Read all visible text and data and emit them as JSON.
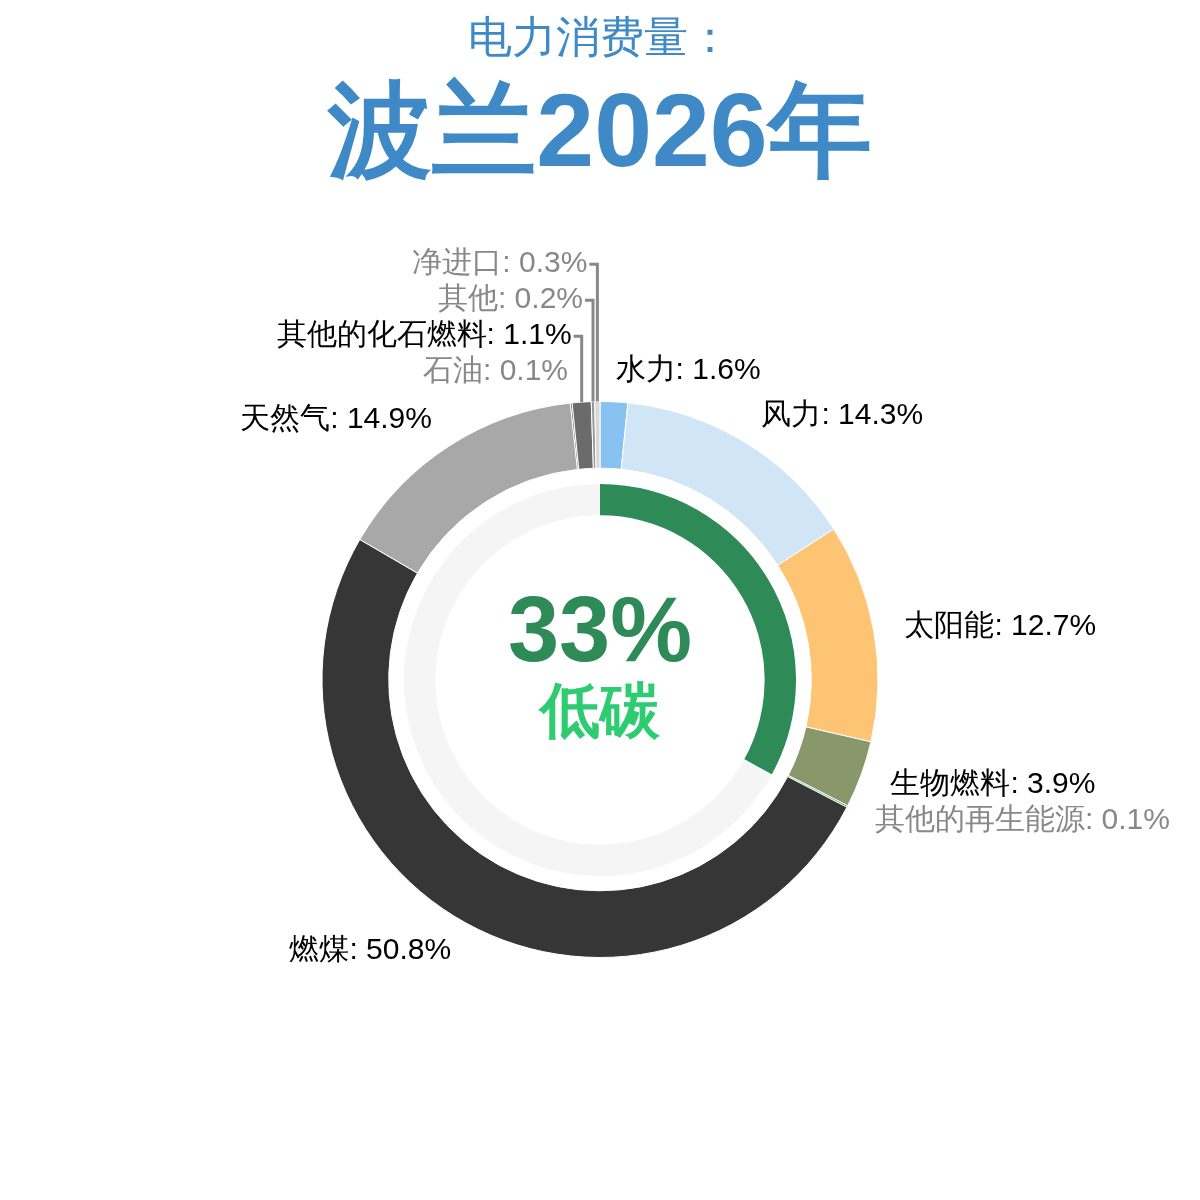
{
  "chart_data": [
    {
      "type": "donut",
      "title": "波兰2026年",
      "subtitle": "电力消费量：",
      "legend": false,
      "categories": [
        "水力",
        "风力",
        "太阳能",
        "生物燃料",
        "其他的再生能源",
        "燃煤",
        "天然气",
        "石油",
        "其他的化石燃料",
        "其他",
        "净进口"
      ],
      "values": [
        1.6,
        14.3,
        12.7,
        3.9,
        0.1,
        50.8,
        14.9,
        0.1,
        1.1,
        0.2,
        0.3
      ],
      "value_labels": [
        "1.6%",
        "14.3%",
        "12.7%",
        "3.9%",
        "0.1%",
        "50.8%",
        "14.9%",
        "0.1%",
        "1.1%",
        "0.2%",
        "0.3%"
      ],
      "colors": [
        "#88c2f0",
        "#d0e6f7",
        "#fdc573",
        "#89986b",
        "#3f9b4f",
        "#363636",
        "#a8a8a8",
        "#555555",
        "#6b6b6b",
        "#9a9a9a",
        "#d8d8d8"
      ]
    },
    {
      "type": "donut",
      "legend": false,
      "categories": [
        "低碳",
        null
      ],
      "values": [
        33,
        67
      ],
      "value_labels": [
        "33%",
        null
      ],
      "colors": [
        "#2e8b57",
        "#f5f5f5"
      ]
    }
  ]
}
